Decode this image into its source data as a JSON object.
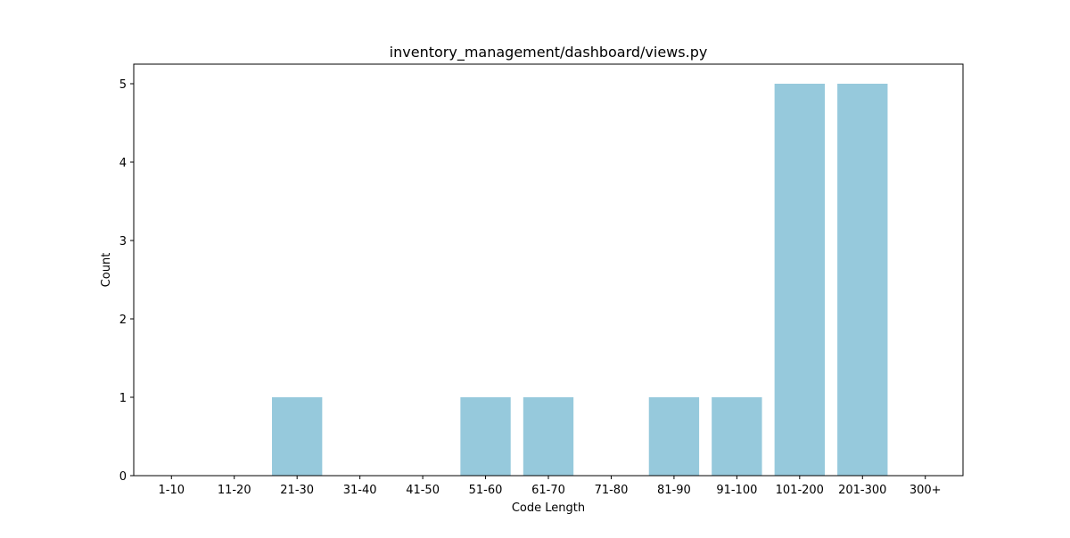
{
  "chart_data": {
    "type": "bar",
    "title": "inventory_management/dashboard/views.py",
    "xlabel": "Code Length",
    "ylabel": "Count",
    "categories": [
      "1-10",
      "11-20",
      "21-30",
      "31-40",
      "41-50",
      "51-60",
      "61-70",
      "71-80",
      "81-90",
      "91-100",
      "101-200",
      "201-300",
      "300+"
    ],
    "values": [
      0,
      0,
      1,
      0,
      0,
      1,
      1,
      0,
      1,
      1,
      5,
      5,
      0
    ],
    "ylim": [
      0,
      5.25
    ],
    "yticks": [
      0,
      1,
      2,
      3,
      4,
      5
    ],
    "bar_color": "#96c9dc",
    "grid": false
  }
}
